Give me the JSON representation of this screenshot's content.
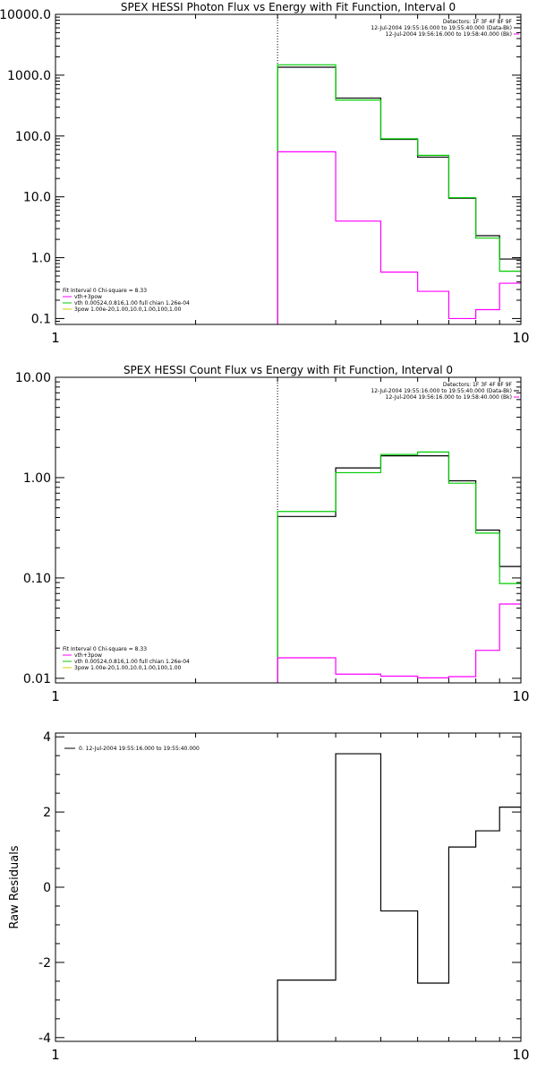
{
  "colors": {
    "background": "#ffffff",
    "axis": "#000000",
    "data": "#000000",
    "total_fit": "#00cc00",
    "component_vth": "#ff00ff",
    "component_bpow": "#cccc00",
    "marker": "#000000"
  },
  "chart_data": [
    {
      "id": "photon",
      "type": "line",
      "title": "SPEX HESSI Photon Flux vs Energy with Fit Function, Interval 0",
      "xlabel": "",
      "ylabel": "",
      "xscale": "log",
      "yscale": "log",
      "xlim": [
        1,
        10
      ],
      "ylim": [
        0.08,
        10000
      ],
      "x_ticks": [
        1,
        10
      ],
      "x_tick_labels": [
        "1",
        "10"
      ],
      "y_ticks": [
        0.1,
        1,
        10,
        100,
        1000,
        10000
      ],
      "y_tick_labels": [
        "0.1",
        "1.0",
        "10.0",
        "100.0",
        "1000.0",
        "10000.0"
      ],
      "marker_x": 3,
      "bin_edges": [
        3,
        4,
        5,
        6,
        7,
        8,
        9,
        10
      ],
      "header_lines": [
        "Detectors: 1F 3F 4F 8F 9F",
        "12-Jul-2004 19:55:16.000 to 19:55:40.000 (Data-Bk)",
        "12-Jul-2004 19:56:16.000 to 19:58:40.000 (Bk)"
      ],
      "legend_lines": [
        "Fit Interval 0   Chi-square = 8.33",
        "vth+3pow",
        "vth 0.00524,0.816,1.00  full chian 1.26e-04",
        "3pow 1.00e-20,1.00,10.0,1.00,100,1.00"
      ],
      "series": [
        {
          "name": "12-Jul-2004 19:55:16.000 to 19:55:40.000 (Data-Bk)",
          "color": "#000000",
          "values": [
            1350,
            420,
            88,
            45,
            9.5,
            2.3,
            0.95
          ]
        },
        {
          "name": "vth+3pow",
          "color": "#00cc00",
          "values": [
            1480,
            390,
            90,
            48,
            9.7,
            2.1,
            0.6
          ]
        },
        {
          "name": "12-Jul-2004 19:56:16.000 to 19:58:40.000 (Bk)",
          "color": "#ff00ff",
          "values": [
            55,
            4,
            0.58,
            0.28,
            0.1,
            0.14,
            0.38
          ]
        }
      ]
    },
    {
      "id": "count",
      "type": "line",
      "title": "SPEX HESSI Count Flux vs Energy with Fit Function, Interval 0",
      "xlabel": "",
      "ylabel": "",
      "xscale": "log",
      "yscale": "log",
      "xlim": [
        1,
        10
      ],
      "ylim": [
        0.009,
        10
      ],
      "x_ticks": [
        1,
        10
      ],
      "x_tick_labels": [
        "1",
        "10"
      ],
      "y_ticks": [
        0.01,
        0.1,
        1,
        10
      ],
      "y_tick_labels": [
        "0.01",
        "0.10",
        "1.00",
        "10.00"
      ],
      "marker_x": 3,
      "bin_edges": [
        3,
        4,
        5,
        6,
        7,
        8,
        9,
        10
      ],
      "header_lines": [
        "Detectors: 1F 3F 4F 8F 9F",
        "12-Jul-2004 19:55:16.000 to 19:55:40.000 (Data-Bk)",
        "12-Jul-2004 19:56:16.000 to 19:58:40.000 (Bk)"
      ],
      "legend_lines": [
        "Fit Interval 0   Chi-square = 8.33",
        "vth+3pow",
        "vth 0.00524,0.816,1.00  full chian 1.26e-04",
        "3pow 1.00e-20,1.00,10.0,1.00,100,1.00"
      ],
      "series": [
        {
          "name": "12-Jul-2004 19:55:16.000 to 19:55:40.000 (Data-Bk)",
          "color": "#000000",
          "values": [
            0.41,
            1.25,
            1.65,
            1.65,
            0.93,
            0.3,
            0.13
          ]
        },
        {
          "name": "vth+3pow",
          "color": "#00cc00",
          "values": [
            0.46,
            1.12,
            1.7,
            1.8,
            0.88,
            0.28,
            0.088
          ]
        },
        {
          "name": "12-Jul-2004 19:56:16.000 to 19:58:40.000 (Bk)",
          "color": "#ff00ff",
          "values": [
            0.016,
            0.011,
            0.0105,
            0.0101,
            0.0104,
            0.019,
            0.055
          ]
        }
      ]
    },
    {
      "id": "residuals",
      "type": "line",
      "title": "",
      "xlabel": "",
      "ylabel": "Raw Residuals",
      "xscale": "log",
      "yscale": "linear",
      "xlim": [
        1,
        10
      ],
      "ylim": [
        -4.1,
        4.1
      ],
      "x_ticks": [
        1,
        10
      ],
      "x_tick_labels": [
        "1",
        "10"
      ],
      "y_ticks": [
        -4,
        -2,
        0,
        2,
        4
      ],
      "y_tick_labels": [
        "-4",
        "-2",
        "0",
        "2",
        "4"
      ],
      "bin_edges": [
        3,
        4,
        5,
        6,
        7,
        8,
        9,
        10
      ],
      "legend_lines": [
        "0. 12-Jul-2004 19:55:16.000 to 19:55:40.000"
      ],
      "series": [
        {
          "name": "0. 12-Jul-2004 19:55:16.000 to 19:55:40.000",
          "color": "#000000",
          "values": [
            -2.47,
            3.55,
            -0.63,
            -2.55,
            1.07,
            1.5,
            2.13
          ]
        }
      ]
    }
  ]
}
